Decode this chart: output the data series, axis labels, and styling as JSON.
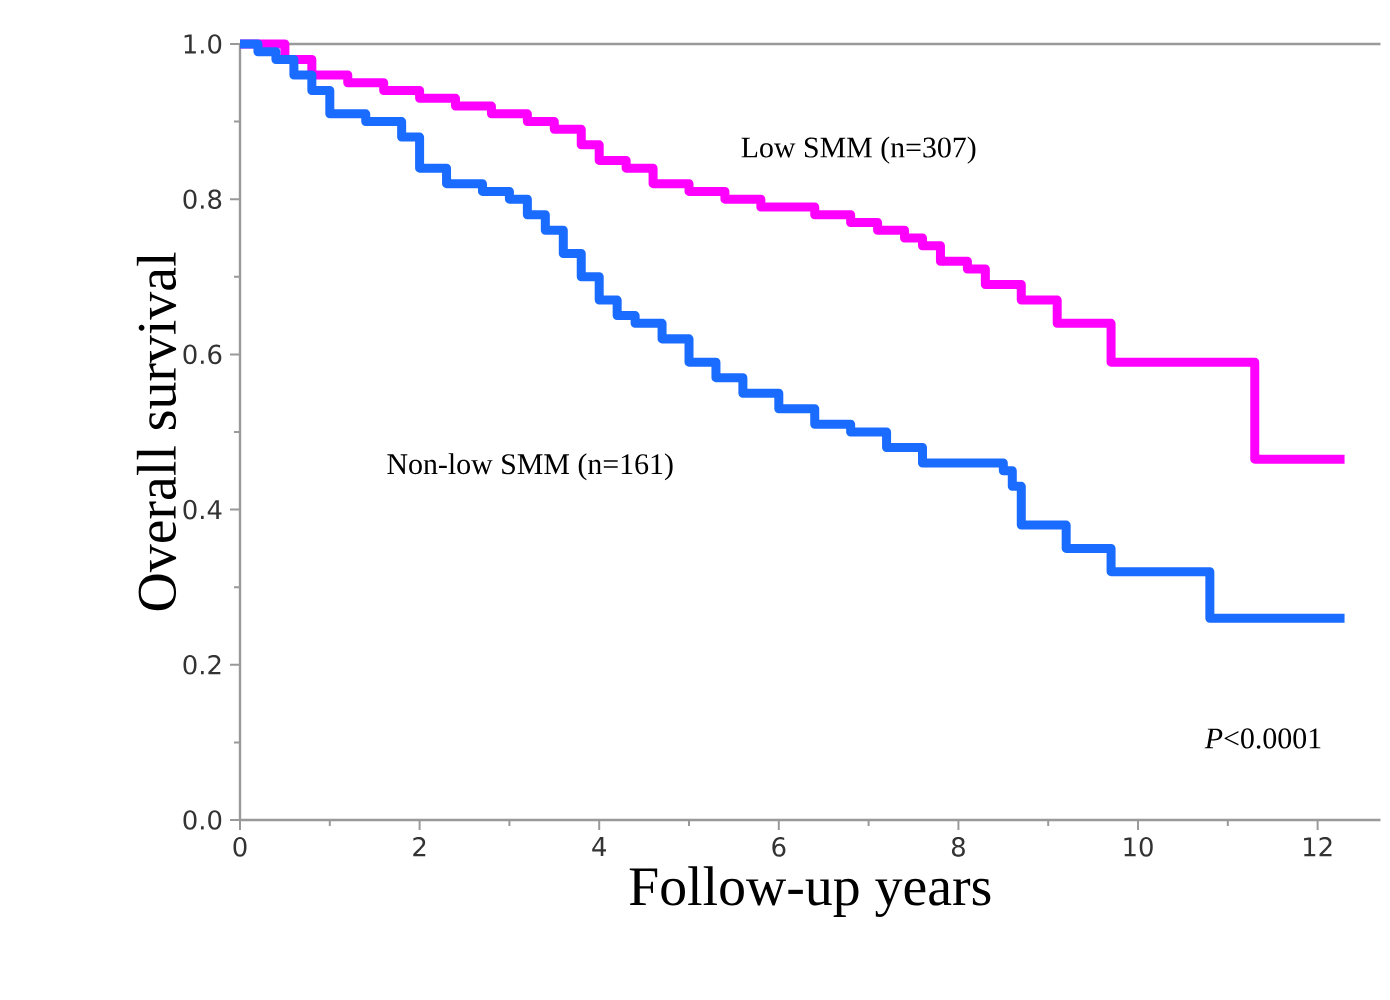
{
  "chart_data": {
    "type": "step",
    "xlabel": "Follow-up years",
    "ylabel": "Overall survival",
    "xlim": [
      0,
      12.7
    ],
    "ylim": [
      0,
      1.0
    ],
    "xticks": [
      0,
      2,
      4,
      6,
      8,
      10,
      12
    ],
    "yticks": [
      {
        "value": 0,
        "label": "0.0"
      },
      {
        "value": 0.2,
        "label": "0.2"
      },
      {
        "value": 0.4,
        "label": "0.4"
      },
      {
        "value": 0.6,
        "label": "0.6"
      },
      {
        "value": 0.8,
        "label": "0.8"
      },
      {
        "value": 1.0,
        "label": "1.0"
      }
    ],
    "grid": false,
    "legend": false,
    "marker": "none",
    "line_style": "solid",
    "series": [
      {
        "name": "Low SMM (n=307)",
        "color": "#ff00ff",
        "x": [
          0,
          0.5,
          0.8,
          1.2,
          1.6,
          2.0,
          2.4,
          2.8,
          3.2,
          3.5,
          3.8,
          4.0,
          4.3,
          4.6,
          5.0,
          5.4,
          5.8,
          6.4,
          6.8,
          7.1,
          7.4,
          7.6,
          7.8,
          8.1,
          8.3,
          8.7,
          9.1,
          9.7,
          11.3,
          12.3
        ],
        "values": [
          1.0,
          0.98,
          0.96,
          0.95,
          0.94,
          0.93,
          0.92,
          0.91,
          0.9,
          0.89,
          0.87,
          0.85,
          0.84,
          0.82,
          0.81,
          0.8,
          0.79,
          0.78,
          0.77,
          0.76,
          0.75,
          0.74,
          0.72,
          0.71,
          0.69,
          0.67,
          0.64,
          0.59,
          0.465,
          0.465
        ]
      },
      {
        "name": "Non-low SMM (n=161)",
        "color": "#1a6bff",
        "x": [
          0,
          0.2,
          0.4,
          0.6,
          0.8,
          1.0,
          1.4,
          1.8,
          2.0,
          2.3,
          2.7,
          3.0,
          3.2,
          3.4,
          3.6,
          3.8,
          4.0,
          4.2,
          4.4,
          4.7,
          5.0,
          5.3,
          5.6,
          6.0,
          6.4,
          6.8,
          7.2,
          7.6,
          8.5,
          8.6,
          8.7,
          9.2,
          9.7,
          10.8,
          12.3
        ],
        "values": [
          1.0,
          0.99,
          0.98,
          0.96,
          0.94,
          0.91,
          0.9,
          0.88,
          0.84,
          0.82,
          0.81,
          0.8,
          0.78,
          0.76,
          0.73,
          0.7,
          0.67,
          0.65,
          0.64,
          0.62,
          0.59,
          0.57,
          0.55,
          0.53,
          0.51,
          0.5,
          0.48,
          0.46,
          0.45,
          0.43,
          0.38,
          0.35,
          0.32,
          0.26,
          0.26
        ]
      }
    ],
    "annotations": [
      "*P*<0.0001"
    ]
  }
}
